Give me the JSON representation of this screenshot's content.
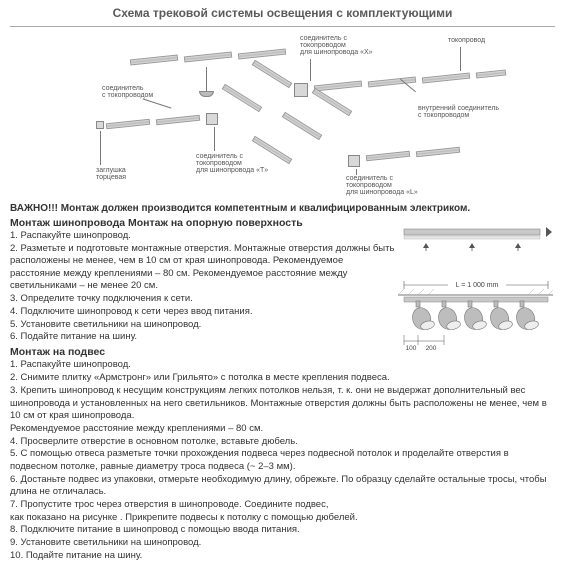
{
  "title": "Схема трековой системы освещения с комплектующими",
  "diagram_labels": {
    "connector_t": "соединитель\nс токопроводом",
    "plug": "заглушка\nторцевая",
    "connector_x": "соединитель с\nтокопроводом\nдля шинопровода «X»",
    "power": "токопровод",
    "inner_connector": "внутренний соединитель\nс токопроводом",
    "connector_t_bus": "соединитель с\nтокопроводом\nдля шинопровода «T»",
    "connector_l_bus": "соединитель с\nтокопроводом\nдля шинопровода «L»"
  },
  "warning": "ВАЖНО!!! Монтаж должен производится компетентным и квалифицированным электриком.",
  "section1_title": "Монтаж шинопровода Монтаж на опорную поверхность",
  "section1_items": {
    "i1": "1. Распакуйте шинопровод.",
    "i2": "2. Разметьте и подготовьте монтажные отверстия. Монтажные отверстия должны быть расположены не менее, чем в 10 см от края шинопровода. Рекомендуемое расстояние между креплениями – 80 см. Рекомендуемое расстояние между светильниками – не менее 20 см.",
    "i3": "3. Определите точку подключения к сети.",
    "i4": "4. Подключите шинопровод к сети через ввод питания.",
    "i5": "5. Установите светильники на шинопровод.",
    "i6": "6. Подайте питание на шину."
  },
  "section2_title": "Монтаж на подвес",
  "section2_items": {
    "i1": "1. Распакуйте шинопровод.",
    "i2": "2. Снимите плитку «Армстронг» или Грильято» с потолка в месте крепления подвеса.",
    "i3": "3. Крепить шинопровод к несущим конструкциям легких потолков нельзя, т. к. они не выдержат дополнительный вес шинопровода и установленных на него светильников. Монтажные отверстия должны быть расположены не менее, чем в 10 см от края шинопровода.",
    "i3b": "Рекомендуемое расстояние между креплениями – 80 см.",
    "i4": "4. Просверлите отверстие в основном потолке, вставьте дюбель.",
    "i5": "5. С помощью отвеса разметьте точки прохождения подвеса через подвесной потолок и проделайте отверстия в подвесном потолке, равные диаметру троса подвеса (~ 2–3 мм).",
    "i6": "6. Достаньте подвес из упаковки, отмерьте необходимую длину, обрежьте. По образцу сделайте остальные тросы, чтобы длина не отличалась.",
    "i7": "7. Пропустите трос через отверстия в шинопроводе. Соедините подвес,",
    "i7b": "как показано на рисунке . Прикрепите подвесы к потолку с помощью дюбелей.",
    "i8": "8. Подключите питание в шинопровод с помощью ввода питания.",
    "i9": "9. Установите светильники на шинопровод.",
    "i10": "10. Подайте питание на шину."
  },
  "fig2": {
    "length_label": "L = 1 000 mm",
    "dim1": "100",
    "dim2": "200"
  },
  "colors": {
    "track": "#bfbfbf",
    "text": "#333333",
    "border": "#999999"
  }
}
